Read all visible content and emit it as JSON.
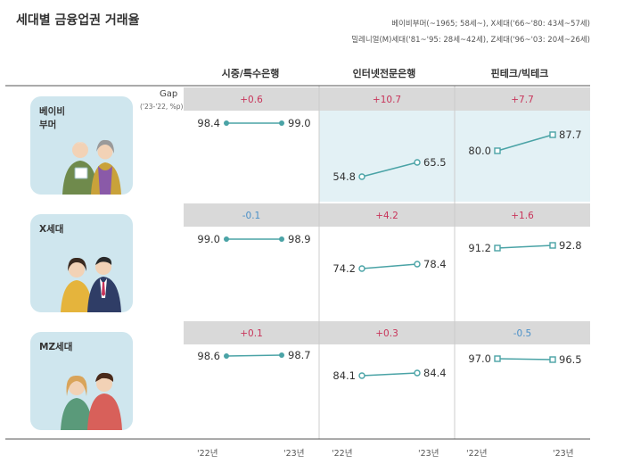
{
  "title": "세대별 금융업권 거래율",
  "legend": {
    "line1": "베이비부머(~1965; 58세~), X세대('66~'80: 43세~57세)",
    "line2": "밀레니얼(M)세대('81~'95: 28세~42세), Z세대('96~'03: 20세~26세)"
  },
  "gap_label": "Gap",
  "gap_sublabel": "('23-'22, %p)",
  "colors": {
    "line": "#4aa3a6",
    "positive": "#c8345a",
    "negative": "#4a90c8",
    "gap_band": "#d9d9d9",
    "card": "#cfe6ee",
    "highlight": "#e3f1f5"
  },
  "chart_data": {
    "type": "line",
    "title": "세대별 금융업권 거래율",
    "categories": [
      "'22년",
      "'23년"
    ],
    "columns": [
      "시중/특수은행",
      "인터넷전문은행",
      "핀테크/빅테크"
    ],
    "groups": [
      "베이비\n부머",
      "X세대",
      "MZ세대"
    ],
    "cells": [
      [
        {
          "values": [
            98.4,
            99.0
          ],
          "gap": "+0.6"
        },
        {
          "values": [
            54.8,
            65.5
          ],
          "gap": "+10.7"
        },
        {
          "values": [
            80.0,
            87.7
          ],
          "gap": "+7.7"
        }
      ],
      [
        {
          "values": [
            99.0,
            98.9
          ],
          "gap": "-0.1"
        },
        {
          "values": [
            74.2,
            78.4
          ],
          "gap": "+4.2"
        },
        {
          "values": [
            91.2,
            92.8
          ],
          "gap": "+1.6"
        }
      ],
      [
        {
          "values": [
            98.6,
            98.7
          ],
          "gap": "+0.1"
        },
        {
          "values": [
            84.1,
            84.4
          ],
          "gap": "+0.3"
        },
        {
          "values": [
            97.0,
            96.5
          ],
          "gap": "-0.5"
        }
      ]
    ],
    "highlighted_cells": [
      [
        0,
        1
      ],
      [
        0,
        2
      ]
    ],
    "markers": [
      "filled-circle",
      "open-circle",
      "open-square"
    ]
  }
}
